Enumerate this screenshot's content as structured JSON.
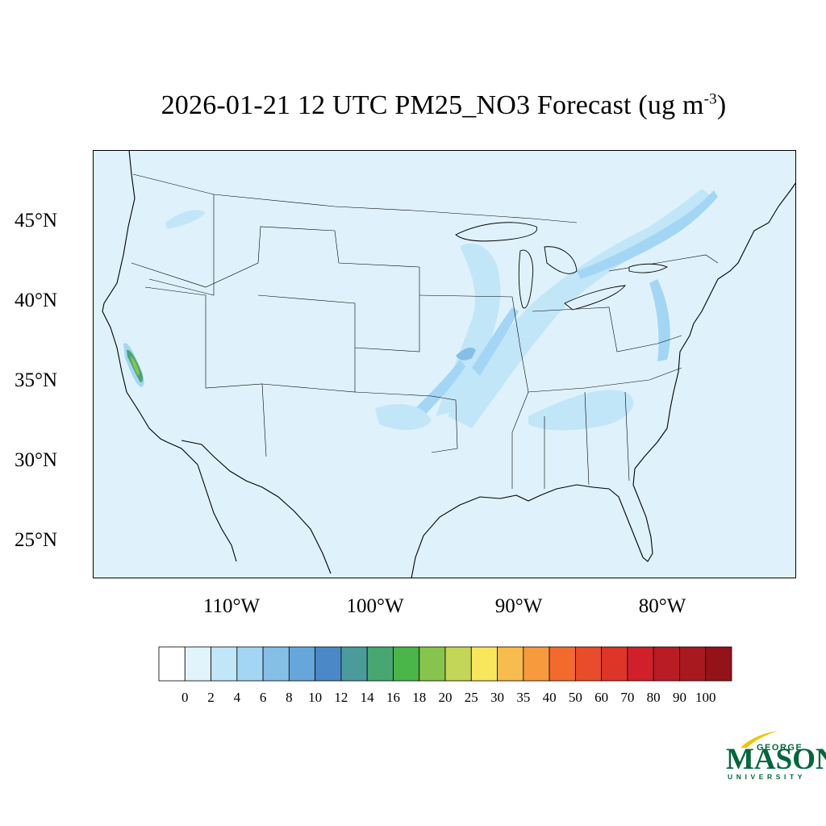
{
  "title": {
    "main": "2026-01-21 12 UTC PM25_NO3 Forecast (ug m",
    "superscript": "-3",
    "close": ")"
  },
  "map": {
    "background_color": "#dff2fb",
    "lat_labels": [
      "45°N",
      "40°N",
      "35°N",
      "30°N",
      "25°N"
    ],
    "lon_labels": [
      "110°W",
      "100°W",
      "90°W",
      "80°W"
    ]
  },
  "colorbar": {
    "colors": [
      "#ffffff",
      "#e1f3fb",
      "#c1e6f8",
      "#a3d6f4",
      "#85bfe6",
      "#67a6da",
      "#4b88c8",
      "#4a9b9c",
      "#48a670",
      "#4ab549",
      "#86c44e",
      "#c4d657",
      "#f8e75c",
      "#f7bc4d",
      "#f69a3d",
      "#f36b2c",
      "#e94c2a",
      "#dd3628",
      "#d0212b",
      "#b91c24",
      "#a8191f",
      "#941318"
    ],
    "labels": [
      "0",
      "2",
      "4",
      "6",
      "8",
      "10",
      "12",
      "14",
      "16",
      "18",
      "20",
      "25",
      "30",
      "35",
      "40",
      "50",
      "60",
      "70",
      "80",
      "90",
      "100"
    ]
  },
  "logo": {
    "line1": "GEORGE",
    "line2": "MASON",
    "line3": "UNIVERSITY",
    "color": "#00663c",
    "accent": "#f2c300"
  }
}
